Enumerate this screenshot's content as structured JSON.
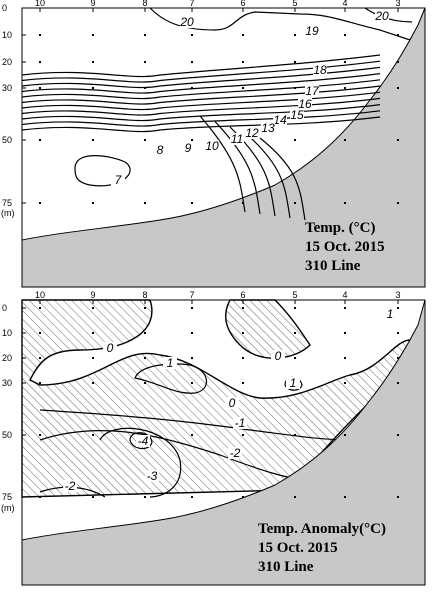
{
  "panels": [
    {
      "stations": [
        "10",
        "9",
        "8",
        "7",
        "6",
        "5",
        "4",
        "3"
      ],
      "depths": [
        "0",
        "10",
        "20",
        "30",
        "50",
        "75"
      ],
      "depth_unit": "(m)",
      "contour_labels": [
        "20",
        "20",
        "19",
        "18",
        "17",
        "16",
        "15",
        "14",
        "13",
        "12",
        "11",
        "10",
        "9",
        "8",
        "7"
      ],
      "caption": [
        "Temp. (°C)",
        "15 Oct. 2015",
        "310 Line"
      ]
    },
    {
      "stations": [
        "10",
        "9",
        "8",
        "7",
        "6",
        "5",
        "4",
        "3"
      ],
      "depths": [
        "0",
        "10",
        "20",
        "30",
        "50",
        "75"
      ],
      "depth_unit": "(m)",
      "contour_labels": [
        "1",
        "0",
        "1",
        "0",
        "1",
        "0",
        "-1",
        "-2",
        "-4",
        "-3",
        "-2"
      ],
      "caption": [
        "Temp. Anomaly(°C)",
        "15 Oct. 2015",
        "310 Line"
      ]
    }
  ]
}
